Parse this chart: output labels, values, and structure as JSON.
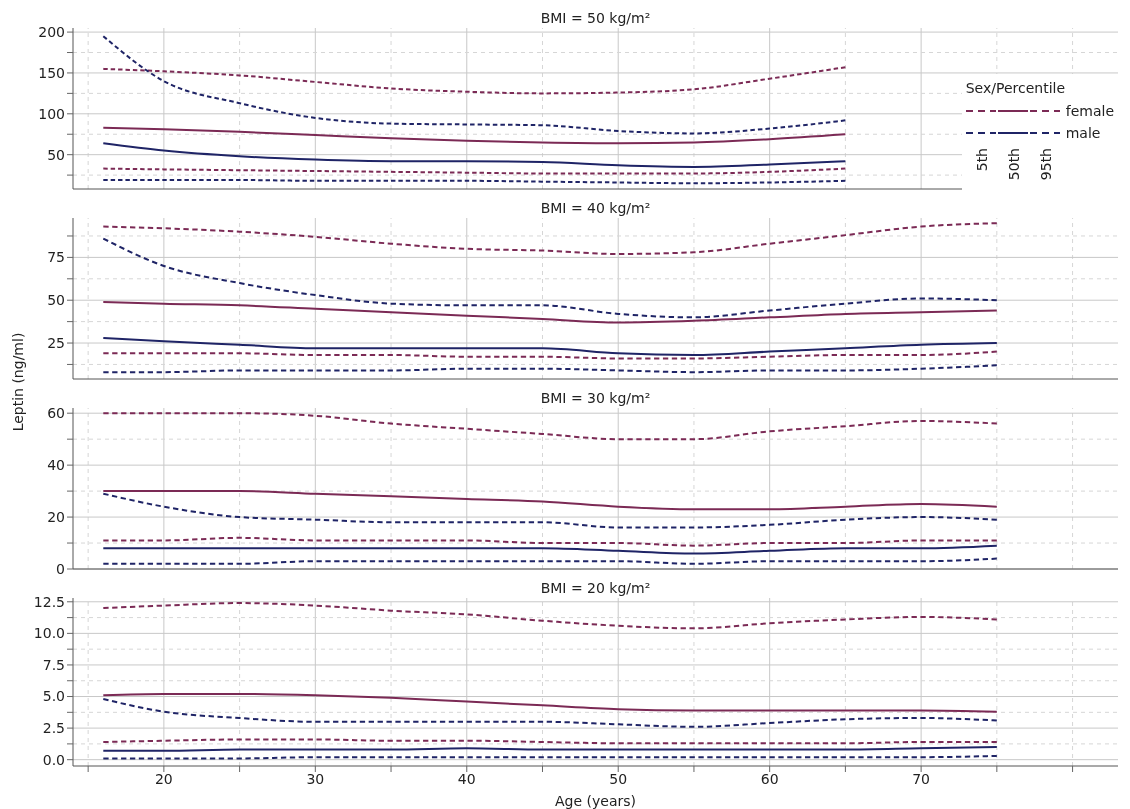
{
  "chart_data": [
    {
      "type": "line",
      "title": "BMI = 50 kg/m²",
      "legend_title": "Sex/Percentile",
      "legend": "right",
      "annotations": [
        "5th",
        "50th",
        "95th"
      ],
      "tick_labels": "y",
      "grid": true,
      "marker": "none",
      "x": [
        16,
        20,
        25,
        30,
        35,
        40,
        45,
        50,
        55,
        60,
        65
      ],
      "xlim": [
        14,
        83
      ],
      "xticks": [
        {
          "value": 15,
          "label": null
        },
        20,
        {
          "value": 25,
          "label": null
        },
        30,
        {
          "value": 35,
          "label": null
        },
        40,
        {
          "value": 45,
          "label": null
        },
        50,
        {
          "value": 55,
          "label": null
        },
        60,
        {
          "value": 65,
          "label": null
        },
        70,
        {
          "value": 75,
          "label": null
        },
        {
          "value": 80,
          "label": null
        }
      ],
      "ylim": [
        8,
        205
      ],
      "yticks": [
        {
          "value": 25,
          "label": null
        },
        50,
        {
          "value": 75,
          "label": null
        },
        100,
        {
          "value": 125,
          "label": null
        },
        150,
        {
          "value": 175,
          "label": null
        },
        200
      ],
      "series": [
        {
          "name": "female",
          "color": "#7b2a55",
          "line_style": "dashed",
          "values": [
            33,
            32,
            31,
            30,
            29,
            28,
            27,
            27,
            27,
            29,
            33
          ]
        },
        {
          "color": "#7b2a55",
          "line_style": "solid",
          "values": [
            83,
            81,
            78,
            74,
            70,
            67,
            65,
            64,
            65,
            69,
            75
          ]
        },
        {
          "color": "#7b2a55",
          "line_style": "dashed",
          "values": [
            155,
            152,
            147,
            139,
            131,
            127,
            125,
            126,
            130,
            143,
            157
          ]
        },
        {
          "name": "male",
          "color": "#1f2466",
          "line_style": "dashed",
          "values": [
            19,
            19,
            19,
            18,
            18,
            18,
            17,
            16,
            15,
            16,
            18
          ]
        },
        {
          "color": "#1f2466",
          "line_style": "solid",
          "values": [
            64,
            55,
            48,
            44,
            42,
            42,
            41,
            37,
            35,
            38,
            42
          ]
        },
        {
          "color": "#1f2466",
          "line_style": "dashed",
          "values": [
            195,
            140,
            113,
            95,
            88,
            87,
            86,
            79,
            76,
            82,
            92
          ]
        }
      ]
    },
    {
      "type": "line",
      "title": "BMI = 40 kg/m²",
      "ylabel": "Leptin (ng/ml)",
      "tick_labels": "y",
      "grid": true,
      "marker": "none",
      "x": [
        16,
        20,
        25,
        30,
        35,
        40,
        45,
        50,
        55,
        60,
        65,
        70,
        75
      ],
      "xlim": [
        14,
        83
      ],
      "xticks": [
        {
          "value": 15,
          "label": null
        },
        20,
        {
          "value": 25,
          "label": null
        },
        30,
        {
          "value": 35,
          "label": null
        },
        40,
        {
          "value": 45,
          "label": null
        },
        50,
        {
          "value": 55,
          "label": null
        },
        60,
        {
          "value": 65,
          "label": null
        },
        70,
        {
          "value": 75,
          "label": null
        },
        {
          "value": 80,
          "label": null
        }
      ],
      "ylim": [
        4,
        98
      ],
      "yticks": [
        {
          "value": 12.5,
          "label": null
        },
        25,
        {
          "value": 37.5,
          "label": null
        },
        50,
        {
          "value": 62.5,
          "label": null
        },
        75,
        {
          "value": 87.5,
          "label": null
        }
      ],
      "series": [
        {
          "color": "#7b2a55",
          "line_style": "dashed",
          "values": [
            19,
            19,
            19,
            18,
            18,
            17,
            17,
            16,
            16,
            17,
            18,
            18,
            20
          ]
        },
        {
          "color": "#7b2a55",
          "line_style": "solid",
          "values": [
            49,
            48,
            47,
            45,
            43,
            41,
            39,
            37,
            38,
            40,
            42,
            43,
            44
          ]
        },
        {
          "color": "#7b2a55",
          "line_style": "dashed",
          "values": [
            93,
            92,
            90,
            87,
            83,
            80,
            79,
            77,
            78,
            83,
            88,
            93,
            95
          ]
        },
        {
          "color": "#1f2466",
          "line_style": "dashed",
          "values": [
            8,
            8,
            9,
            9,
            9,
            10,
            10,
            9,
            8,
            9,
            9,
            10,
            12
          ]
        },
        {
          "color": "#1f2466",
          "line_style": "solid",
          "values": [
            28,
            26,
            24,
            22,
            22,
            22,
            22,
            19,
            18,
            20,
            22,
            24,
            25
          ]
        },
        {
          "color": "#1f2466",
          "line_style": "dashed",
          "values": [
            86,
            70,
            60,
            53,
            48,
            47,
            47,
            42,
            40,
            44,
            48,
            51,
            50
          ]
        }
      ]
    },
    {
      "type": "line",
      "title": "BMI = 30 kg/m²",
      "tick_labels": "y",
      "grid": true,
      "marker": "none",
      "x": [
        16,
        20,
        25,
        30,
        35,
        40,
        45,
        50,
        55,
        60,
        65,
        70,
        75
      ],
      "xlim": [
        14,
        83
      ],
      "xticks": [
        {
          "value": 15,
          "label": null
        },
        20,
        {
          "value": 25,
          "label": null
        },
        30,
        {
          "value": 35,
          "label": null
        },
        40,
        {
          "value": 45,
          "label": null
        },
        50,
        {
          "value": 55,
          "label": null
        },
        60,
        {
          "value": 65,
          "label": null
        },
        70,
        {
          "value": 75,
          "label": null
        },
        {
          "value": 80,
          "label": null
        }
      ],
      "ylim": [
        0,
        62
      ],
      "yticks": [
        0,
        {
          "value": 10,
          "label": null
        },
        20,
        {
          "value": 30,
          "label": null
        },
        40,
        {
          "value": 50,
          "label": null
        },
        60
      ],
      "series": [
        {
          "color": "#7b2a55",
          "line_style": "dashed",
          "values": [
            11,
            11,
            12,
            11,
            11,
            11,
            10,
            10,
            9,
            10,
            10,
            11,
            11
          ]
        },
        {
          "color": "#7b2a55",
          "line_style": "solid",
          "values": [
            30,
            30,
            30,
            29,
            28,
            27,
            26,
            24,
            23,
            23,
            24,
            25,
            24
          ]
        },
        {
          "color": "#7b2a55",
          "line_style": "dashed",
          "values": [
            60,
            60,
            60,
            59,
            56,
            54,
            52,
            50,
            50,
            53,
            55,
            57,
            56
          ]
        },
        {
          "color": "#1f2466",
          "line_style": "dashed",
          "values": [
            2,
            2,
            2,
            3,
            3,
            3,
            3,
            3,
            2,
            3,
            3,
            3,
            4
          ]
        },
        {
          "color": "#1f2466",
          "line_style": "solid",
          "values": [
            8,
            8,
            8,
            8,
            8,
            8,
            8,
            7,
            6,
            7,
            8,
            8,
            9
          ]
        },
        {
          "color": "#1f2466",
          "line_style": "dashed",
          "values": [
            29,
            24,
            20,
            19,
            18,
            18,
            18,
            16,
            16,
            17,
            19,
            20,
            19
          ]
        }
      ]
    },
    {
      "type": "line",
      "title": "BMI = 20 kg/m²",
      "xlabel": "Age (years)",
      "grid": true,
      "marker": "none",
      "x": [
        16,
        20,
        25,
        30,
        35,
        40,
        45,
        50,
        55,
        60,
        65,
        70,
        75
      ],
      "xlim": [
        14,
        83
      ],
      "xticks": [
        {
          "value": 15,
          "label": null
        },
        20,
        {
          "value": 25,
          "label": null
        },
        30,
        {
          "value": 35,
          "label": null
        },
        40,
        {
          "value": 45,
          "label": null
        },
        50,
        {
          "value": 55,
          "label": null
        },
        60,
        {
          "value": 65,
          "label": null
        },
        70,
        {
          "value": 75,
          "label": null
        },
        {
          "value": 80,
          "label": null
        }
      ],
      "ylim": [
        -0.5,
        12.8
      ],
      "yticks": [
        {
          "value": 0,
          "label": "0.0"
        },
        {
          "value": 1.25,
          "label": null
        },
        {
          "value": 2.5,
          "label": "2.5"
        },
        {
          "value": 3.75,
          "label": null
        },
        {
          "value": 5,
          "label": "5.0"
        },
        {
          "value": 6.25,
          "label": null
        },
        {
          "value": 7.5,
          "label": "7.5"
        },
        {
          "value": 8.75,
          "label": null
        },
        {
          "value": 10,
          "label": "10.0"
        },
        {
          "value": 11.25,
          "label": null
        },
        {
          "value": 12.5,
          "label": "12.5"
        }
      ],
      "series": [
        {
          "color": "#7b2a55",
          "line_style": "dashed",
          "values": [
            1.4,
            1.5,
            1.6,
            1.6,
            1.5,
            1.5,
            1.4,
            1.3,
            1.3,
            1.3,
            1.3,
            1.4,
            1.4
          ]
        },
        {
          "color": "#7b2a55",
          "line_style": "solid",
          "values": [
            5.1,
            5.2,
            5.2,
            5.1,
            4.9,
            4.6,
            4.3,
            4.0,
            3.9,
            3.9,
            3.9,
            3.9,
            3.8
          ]
        },
        {
          "color": "#7b2a55",
          "line_style": "dashed",
          "values": [
            12.0,
            12.2,
            12.4,
            12.2,
            11.8,
            11.5,
            11.0,
            10.6,
            10.4,
            10.8,
            11.1,
            11.3,
            11.1
          ]
        },
        {
          "color": "#1f2466",
          "line_style": "dashed",
          "values": [
            0.1,
            0.1,
            0.1,
            0.2,
            0.2,
            0.2,
            0.2,
            0.2,
            0.2,
            0.2,
            0.2,
            0.2,
            0.3
          ]
        },
        {
          "color": "#1f2466",
          "line_style": "solid",
          "values": [
            0.7,
            0.7,
            0.8,
            0.8,
            0.8,
            0.9,
            0.8,
            0.8,
            0.8,
            0.8,
            0.8,
            0.9,
            1.0
          ]
        },
        {
          "color": "#1f2466",
          "line_style": "dashed",
          "values": [
            4.8,
            3.8,
            3.3,
            3.0,
            3.0,
            3.0,
            3.0,
            2.8,
            2.6,
            2.9,
            3.2,
            3.3,
            3.1
          ]
        }
      ]
    }
  ]
}
